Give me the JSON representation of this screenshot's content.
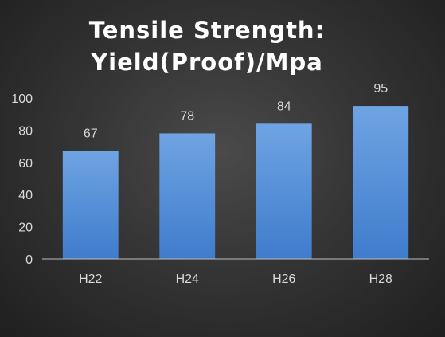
{
  "chart_data": {
    "type": "bar",
    "title_lines": [
      "Tensile Strength:",
      "Yield(Proof)/Mpa"
    ],
    "categories": [
      "H22",
      "H24",
      "H26",
      "H28"
    ],
    "values": [
      67,
      78,
      84,
      95
    ],
    "data_labels": [
      "67",
      "78",
      "84",
      "95"
    ],
    "xlabel": "",
    "ylabel": "",
    "ylim": [
      0,
      100
    ],
    "y_ticks": [
      "0",
      "20",
      "40",
      "60",
      "80",
      "100"
    ],
    "grid": false,
    "legend": "none",
    "colors": {
      "bar_top": "#6fa4e3",
      "bar_bottom": "#3f7ccc",
      "axis": "#bfbfbf",
      "text": "#d9d9d9",
      "title": "#ffffff"
    }
  }
}
